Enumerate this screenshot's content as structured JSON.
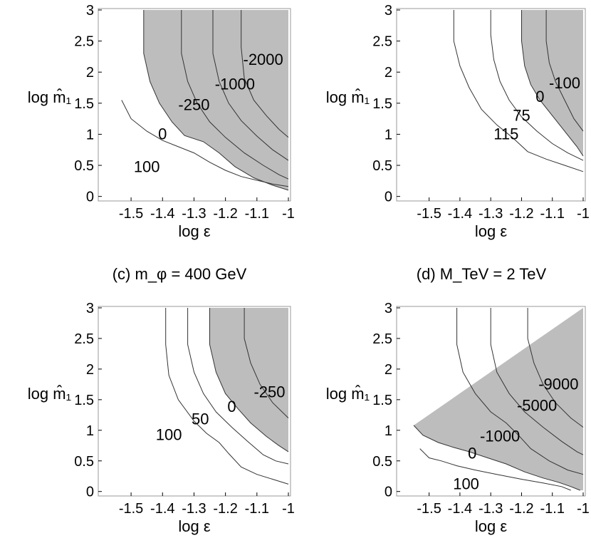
{
  "chart_data": [
    {
      "type": "contour",
      "title": "",
      "xlabel": "log ε",
      "ylabel": "log m̂₁",
      "xlim": [
        -1.55,
        -1.0
      ],
      "ylim": [
        -0.05,
        3.0
      ],
      "x_ticks": [
        "-1.5",
        "-1.4",
        "-1.3",
        "-1.2",
        "-1.1",
        "-1"
      ],
      "y_ticks": [
        "0",
        "0.5",
        "1",
        "1.5",
        "2",
        "2.5",
        "3"
      ],
      "shaded_region": "values ≤ 0",
      "contours": [
        {
          "label": "100",
          "points": [
            [
              -1.53,
              1.55
            ],
            [
              -1.5,
              1.25
            ],
            [
              -1.45,
              1.05
            ],
            [
              -1.4,
              0.9
            ],
            [
              -1.35,
              0.8
            ],
            [
              -1.3,
              0.7
            ],
            [
              -1.25,
              0.55
            ],
            [
              -1.2,
              0.42
            ],
            [
              -1.15,
              0.32
            ],
            [
              -1.1,
              0.26
            ],
            [
              -1.05,
              0.2
            ],
            [
              -1.0,
              0.16
            ]
          ]
        },
        {
          "label": "0",
          "points": [
            [
              -1.46,
              3.0
            ],
            [
              -1.46,
              2.3
            ],
            [
              -1.44,
              1.85
            ],
            [
              -1.41,
              1.5
            ],
            [
              -1.37,
              1.2
            ],
            [
              -1.33,
              0.98
            ],
            [
              -1.27,
              0.88
            ],
            [
              -1.22,
              0.7
            ],
            [
              -1.17,
              0.48
            ],
            [
              -1.11,
              0.3
            ],
            [
              -1.05,
              0.18
            ],
            [
              -1.0,
              0.1
            ]
          ]
        },
        {
          "label": "-250",
          "points": [
            [
              -1.34,
              3.0
            ],
            [
              -1.34,
              2.3
            ],
            [
              -1.32,
              1.85
            ],
            [
              -1.29,
              1.5
            ],
            [
              -1.25,
              1.2
            ],
            [
              -1.2,
              0.95
            ],
            [
              -1.14,
              0.7
            ],
            [
              -1.08,
              0.5
            ],
            [
              -1.03,
              0.35
            ],
            [
              -1.0,
              0.28
            ]
          ]
        },
        {
          "label": "-1000",
          "points": [
            [
              -1.24,
              3.0
            ],
            [
              -1.24,
              2.3
            ],
            [
              -1.22,
              1.85
            ],
            [
              -1.19,
              1.5
            ],
            [
              -1.15,
              1.22
            ],
            [
              -1.1,
              0.97
            ],
            [
              -1.05,
              0.75
            ],
            [
              -1.0,
              0.58
            ]
          ]
        },
        {
          "label": "-2000",
          "points": [
            [
              -1.15,
              3.0
            ],
            [
              -1.15,
              2.4
            ],
            [
              -1.14,
              1.9
            ],
            [
              -1.11,
              1.55
            ],
            [
              -1.07,
              1.3
            ],
            [
              -1.03,
              1.08
            ],
            [
              -1.0,
              0.95
            ]
          ]
        }
      ],
      "labels": [
        {
          "text": "-2000",
          "x": -1.08,
          "y": 2.2
        },
        {
          "text": "-1000",
          "x": -1.17,
          "y": 1.8
        },
        {
          "text": "-250",
          "x": -1.3,
          "y": 1.47
        },
        {
          "text": "0",
          "x": -1.4,
          "y": 1.0
        },
        {
          "text": "100",
          "x": -1.45,
          "y": 0.47
        }
      ]
    },
    {
      "type": "contour",
      "title": "",
      "xlabel": "log ε",
      "ylabel": "log m̂₁",
      "xlim": [
        -1.55,
        -1.0
      ],
      "ylim": [
        -0.05,
        3.0
      ],
      "x_ticks": [
        "-1.5",
        "-1.4",
        "-1.3",
        "-1.2",
        "-1.1",
        "-1"
      ],
      "y_ticks": [
        "0",
        "0.5",
        "1",
        "1.5",
        "2",
        "2.5",
        "3"
      ],
      "shaded_region": "values ≤ 0",
      "contours": [
        {
          "label": "115",
          "points": [
            [
              -1.42,
              3.0
            ],
            [
              -1.42,
              2.5
            ],
            [
              -1.4,
              2.1
            ],
            [
              -1.37,
              1.75
            ],
            [
              -1.33,
              1.4
            ],
            [
              -1.28,
              1.15
            ],
            [
              -1.23,
              0.95
            ],
            [
              -1.18,
              0.72
            ],
            [
              -1.12,
              0.6
            ],
            [
              -1.06,
              0.5
            ],
            [
              -1.0,
              0.4
            ]
          ]
        },
        {
          "label": "75",
          "points": [
            [
              -1.3,
              3.0
            ],
            [
              -1.3,
              2.6
            ],
            [
              -1.29,
              2.2
            ],
            [
              -1.27,
              1.85
            ],
            [
              -1.24,
              1.55
            ],
            [
              -1.2,
              1.28
            ],
            [
              -1.15,
              1.05
            ],
            [
              -1.1,
              0.85
            ],
            [
              -1.05,
              0.7
            ],
            [
              -1.0,
              0.58
            ]
          ]
        },
        {
          "label": "0",
          "points": [
            [
              -1.2,
              3.0
            ],
            [
              -1.2,
              2.5
            ],
            [
              -1.19,
              2.1
            ],
            [
              -1.17,
              1.8
            ],
            [
              -1.14,
              1.55
            ],
            [
              -1.1,
              1.3
            ],
            [
              -1.06,
              1.05
            ],
            [
              -1.02,
              0.8
            ],
            [
              -1.0,
              0.65
            ]
          ]
        },
        {
          "label": "-100",
          "points": [
            [
              -1.12,
              3.0
            ],
            [
              -1.12,
              2.5
            ],
            [
              -1.11,
              2.15
            ],
            [
              -1.09,
              1.85
            ],
            [
              -1.06,
              1.55
            ],
            [
              -1.03,
              1.25
            ],
            [
              -1.0,
              1.05
            ]
          ]
        }
      ],
      "labels": [
        {
          "text": "-100",
          "x": -1.06,
          "y": 1.82
        },
        {
          "text": "0",
          "x": -1.14,
          "y": 1.6
        },
        {
          "text": "75",
          "x": -1.2,
          "y": 1.3
        },
        {
          "text": "115",
          "x": -1.25,
          "y": 1.0
        }
      ]
    },
    {
      "type": "contour",
      "title": "(c) m_φ = 400 GeV",
      "xlabel": "log ε",
      "ylabel": "log m̂₁",
      "xlim": [
        -1.55,
        -1.0
      ],
      "ylim": [
        -0.05,
        3.0
      ],
      "x_ticks": [
        "-1.5",
        "-1.4",
        "-1.3",
        "-1.2",
        "-1.1",
        "-1"
      ],
      "y_ticks": [
        "0",
        "0.5",
        "1",
        "1.5",
        "2",
        "2.5",
        "3"
      ],
      "shaded_region": "values ≤ 0",
      "contours": [
        {
          "label": "100",
          "points": [
            [
              -1.39,
              3.0
            ],
            [
              -1.39,
              2.4
            ],
            [
              -1.38,
              1.9
            ],
            [
              -1.35,
              1.5
            ],
            [
              -1.3,
              1.15
            ],
            [
              -1.26,
              0.95
            ],
            [
              -1.22,
              0.8
            ],
            [
              -1.19,
              0.62
            ],
            [
              -1.15,
              0.4
            ],
            [
              -1.1,
              0.28
            ],
            [
              -1.05,
              0.2
            ],
            [
              -1.0,
              0.12
            ]
          ]
        },
        {
          "label": "50",
          "points": [
            [
              -1.32,
              3.0
            ],
            [
              -1.32,
              2.4
            ],
            [
              -1.3,
              1.95
            ],
            [
              -1.27,
              1.6
            ],
            [
              -1.23,
              1.3
            ],
            [
              -1.18,
              1.05
            ],
            [
              -1.13,
              0.82
            ],
            [
              -1.08,
              0.6
            ],
            [
              -1.04,
              0.5
            ],
            [
              -1.0,
              0.45
            ]
          ]
        },
        {
          "label": "0",
          "points": [
            [
              -1.25,
              3.0
            ],
            [
              -1.25,
              2.4
            ],
            [
              -1.23,
              1.95
            ],
            [
              -1.2,
              1.6
            ],
            [
              -1.16,
              1.35
            ],
            [
              -1.12,
              1.12
            ],
            [
              -1.07,
              0.9
            ],
            [
              -1.03,
              0.75
            ],
            [
              -1.0,
              0.65
            ]
          ]
        },
        {
          "label": "-250",
          "points": [
            [
              -1.14,
              3.0
            ],
            [
              -1.14,
              2.5
            ],
            [
              -1.12,
              2.1
            ],
            [
              -1.09,
              1.75
            ],
            [
              -1.05,
              1.45
            ],
            [
              -1.0,
              1.2
            ]
          ]
        }
      ],
      "labels": [
        {
          "text": "-250",
          "x": -1.06,
          "y": 1.62
        },
        {
          "text": "0",
          "x": -1.18,
          "y": 1.38
        },
        {
          "text": "50",
          "x": -1.28,
          "y": 1.18
        },
        {
          "text": "100",
          "x": -1.38,
          "y": 0.92
        }
      ]
    },
    {
      "type": "contour",
      "title": "(d) M_TeV = 2 TeV",
      "xlabel": "log ε",
      "ylabel": "log m̂₁",
      "xlim": [
        -1.55,
        -1.0
      ],
      "ylim": [
        -0.05,
        3.0
      ],
      "x_ticks": [
        "-1.5",
        "-1.4",
        "-1.3",
        "-1.2",
        "-1.1",
        "-1"
      ],
      "y_ticks": [
        "0",
        "0.5",
        "1",
        "1.5",
        "2",
        "2.5",
        "3"
      ],
      "shaded_region": "values ≤ 0",
      "contours": [
        {
          "label": "100",
          "points": [
            [
              -1.53,
              0.7
            ],
            [
              -1.5,
              0.55
            ],
            [
              -1.46,
              0.5
            ],
            [
              -1.41,
              0.42
            ],
            [
              -1.35,
              0.35
            ],
            [
              -1.28,
              0.28
            ],
            [
              -1.2,
              0.2
            ],
            [
              -1.13,
              0.14
            ],
            [
              -1.07,
              0.08
            ],
            [
              -1.04,
              0.02
            ]
          ]
        },
        {
          "label": "0",
          "points": [
            [
              -1.55,
              1.08
            ],
            [
              -1.52,
              0.92
            ],
            [
              -1.47,
              0.8
            ],
            [
              -1.42,
              0.72
            ],
            [
              -1.37,
              0.65
            ],
            [
              -1.31,
              0.55
            ],
            [
              -1.25,
              0.45
            ],
            [
              -1.19,
              0.32
            ],
            [
              -1.13,
              0.22
            ],
            [
              -1.08,
              0.15
            ],
            [
              -1.04,
              0.08
            ],
            [
              -1.01,
              0.02
            ]
          ]
        },
        {
          "label": "-1000",
          "points": [
            [
              -1.41,
              3.0
            ],
            [
              -1.41,
              2.4
            ],
            [
              -1.39,
              1.95
            ],
            [
              -1.35,
              1.6
            ],
            [
              -1.3,
              1.3
            ],
            [
              -1.25,
              1.12
            ],
            [
              -1.21,
              0.92
            ],
            [
              -1.17,
              0.7
            ],
            [
              -1.11,
              0.5
            ],
            [
              -1.05,
              0.35
            ],
            [
              -1.0,
              0.28
            ]
          ]
        },
        {
          "label": "-5000",
          "points": [
            [
              -1.3,
              3.0
            ],
            [
              -1.3,
              2.4
            ],
            [
              -1.28,
              1.95
            ],
            [
              -1.24,
              1.6
            ],
            [
              -1.19,
              1.3
            ],
            [
              -1.13,
              1.05
            ],
            [
              -1.07,
              0.82
            ],
            [
              -1.02,
              0.65
            ],
            [
              -1.0,
              0.6
            ]
          ]
        },
        {
          "label": "-9000",
          "points": [
            [
              -1.18,
              3.0
            ],
            [
              -1.18,
              2.5
            ],
            [
              -1.16,
              2.1
            ],
            [
              -1.13,
              1.75
            ],
            [
              -1.09,
              1.45
            ],
            [
              -1.04,
              1.2
            ],
            [
              -1.0,
              1.05
            ]
          ]
        }
      ],
      "labels": [
        {
          "text": "-9000",
          "x": -1.08,
          "y": 1.75
        },
        {
          "text": "-5000",
          "x": -1.15,
          "y": 1.4
        },
        {
          "text": "-1000",
          "x": -1.27,
          "y": 0.9
        },
        {
          "text": "0",
          "x": -1.36,
          "y": 0.62
        },
        {
          "text": "100",
          "x": -1.38,
          "y": 0.12
        }
      ]
    }
  ],
  "colors": {
    "shade": "#bdbdbd",
    "line": "#333333",
    "frame": "#999999"
  }
}
